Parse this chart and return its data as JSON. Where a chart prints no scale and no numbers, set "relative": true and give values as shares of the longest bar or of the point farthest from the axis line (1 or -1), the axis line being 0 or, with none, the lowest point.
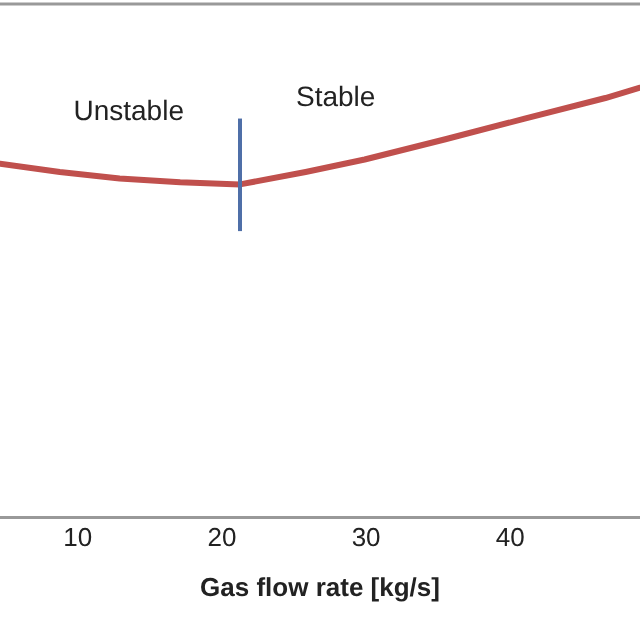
{
  "chart_data": {
    "type": "line",
    "relative": true,
    "xlabel": "Gas flow rate [kg/s]",
    "x": [
      4.6,
      8.75,
      12.9,
      17.1,
      21.25,
      25.8,
      29.9,
      35.5,
      41.0,
      46.6,
      49.0
    ],
    "series": [
      {
        "color": "#c0504d",
        "values": [
          0.823,
          0.804,
          0.789,
          0.78,
          0.775,
          0.804,
          0.833,
          0.88,
          0.928,
          0.976,
          1
        ]
      }
    ],
    "xlim": [
      4.6,
      49
    ],
    "xticks": [
      10,
      20,
      30,
      40
    ],
    "ref_lines": [
      {
        "axis": "x",
        "value": 21.25,
        "color": "#4f6fa8"
      }
    ],
    "annotations": [
      "Unstable",
      "Stable"
    ],
    "grid": false,
    "legend": false,
    "tick_labels": "x",
    "marker": "none",
    "line_style": "solid"
  }
}
